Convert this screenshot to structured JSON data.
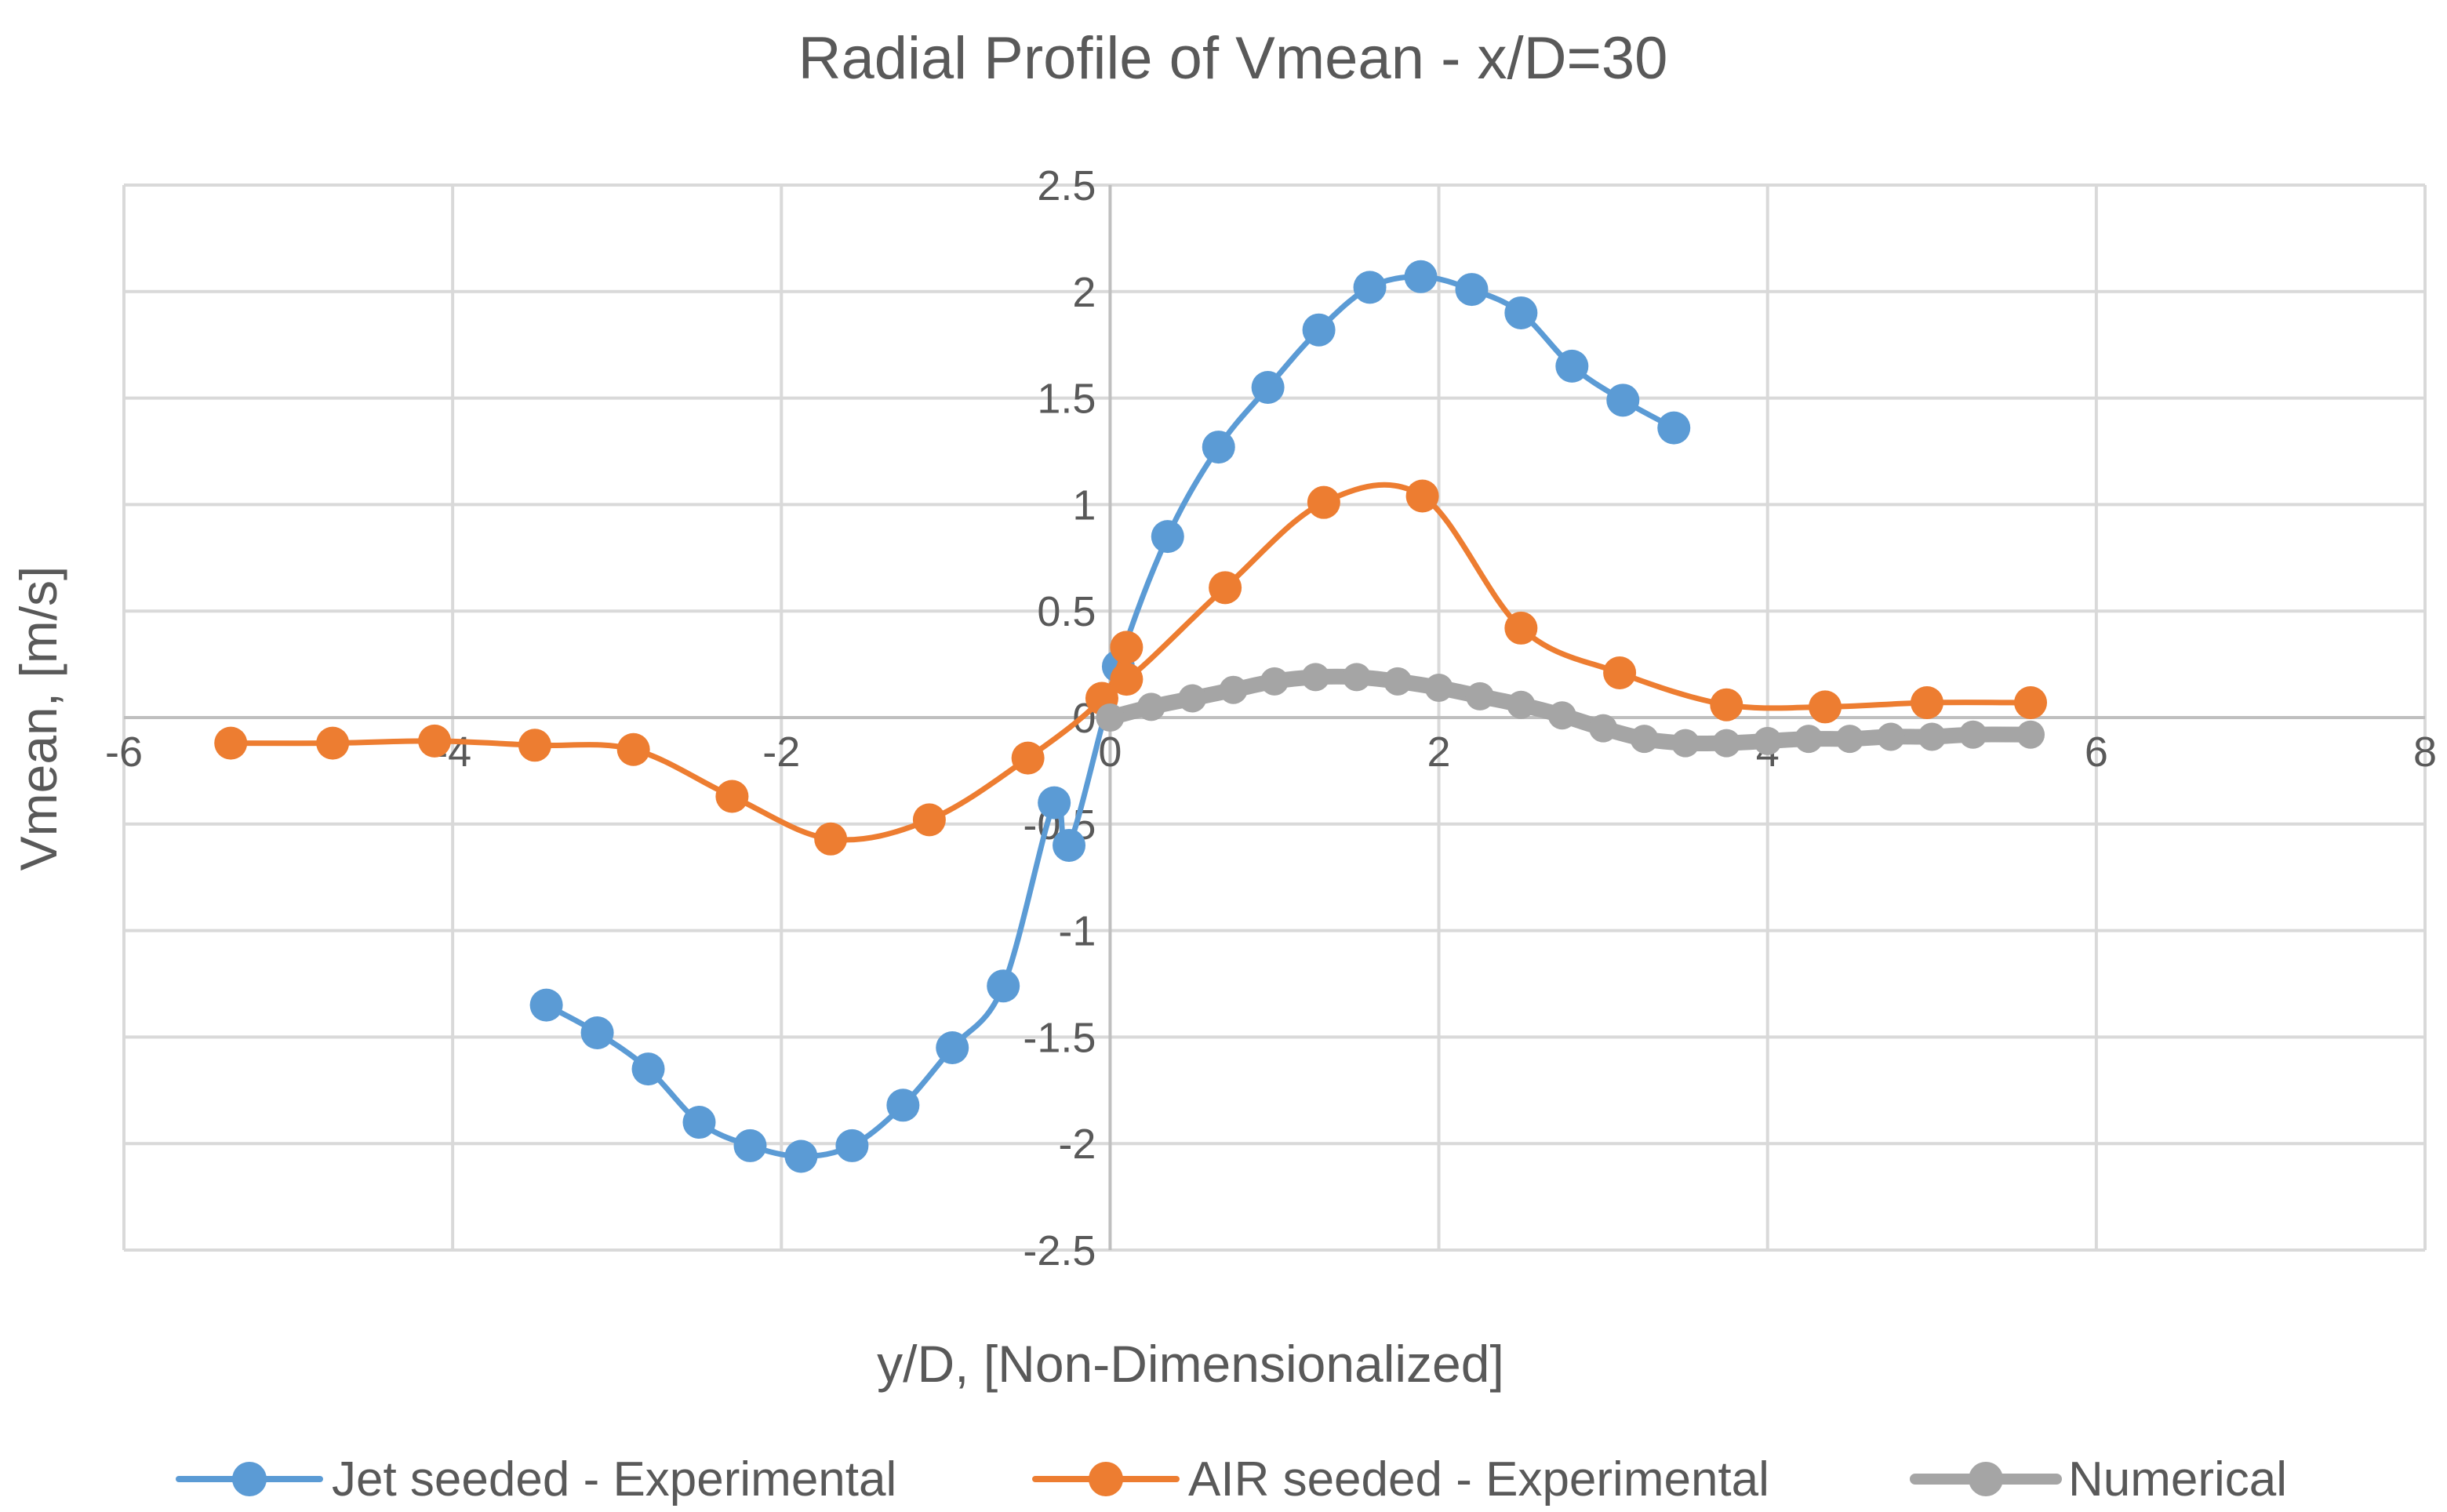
{
  "chart_data": {
    "type": "scatter",
    "title": "Radial Profile of Vmean - x/D=30",
    "xlabel": "y/D, [Non-Dimensionalized]",
    "ylabel": "Vmean, [m/s]",
    "xlim": [
      -6,
      8
    ],
    "ylim": [
      -2.5,
      2.5
    ],
    "x_ticks": [
      -6,
      -4,
      -2,
      0,
      2,
      4,
      6,
      8
    ],
    "y_ticks": [
      -2.5,
      -2,
      -1.5,
      -1,
      -0.5,
      0,
      0.5,
      1,
      1.5,
      2,
      2.5
    ],
    "x_tick_labels": [
      "-6",
      "-4",
      "-2",
      "0",
      "2",
      "4",
      "6",
      "8"
    ],
    "y_tick_labels": [
      "-2.5",
      "-2",
      "-1.5",
      "-1",
      "-0.5",
      "0",
      "0.5",
      "1",
      "1.5",
      "2",
      "2.5"
    ],
    "grid": true,
    "legend_position": "bottom",
    "series": [
      {
        "name": "Jet seeded - Experimental",
        "color": "#5b9bd5",
        "marker": "circle",
        "x": [
          -3.43,
          -3.12,
          -2.81,
          -2.5,
          -2.19,
          -1.88,
          -1.57,
          -1.26,
          -0.96,
          -0.65,
          -0.34,
          -0.25,
          0.05,
          0.35,
          0.66,
          0.96,
          1.27,
          1.58,
          1.89,
          2.2,
          2.5,
          2.81,
          3.12,
          3.43
        ],
        "y": [
          -1.35,
          -1.48,
          -1.65,
          -1.9,
          -2.01,
          -2.06,
          -2.01,
          -1.82,
          -1.55,
          -1.26,
          -0.4,
          -0.6,
          0.24,
          0.85,
          1.27,
          1.55,
          1.82,
          2.02,
          2.07,
          2.01,
          1.9,
          1.65,
          1.49,
          1.36
        ]
      },
      {
        "name": "AIR seeded - Experimental",
        "color": "#ed7d31",
        "marker": "circle",
        "x": [
          -5.35,
          -4.73,
          -4.11,
          -3.5,
          -2.9,
          -2.3,
          -1.7,
          -1.1,
          -0.5,
          -0.05,
          0.1,
          0.1,
          0.7,
          1.3,
          1.9,
          2.5,
          3.1,
          3.75,
          4.35,
          4.97,
          5.6
        ],
        "y": [
          -0.12,
          -0.12,
          -0.11,
          -0.13,
          -0.15,
          -0.37,
          -0.57,
          -0.48,
          -0.19,
          0.09,
          0.33,
          0.18,
          0.61,
          1.01,
          1.04,
          0.42,
          0.21,
          0.06,
          0.05,
          0.07,
          0.07
        ]
      },
      {
        "name": "Numerical",
        "color": "#a5a5a5",
        "marker": "circle",
        "x": [
          0.0,
          0.25,
          0.5,
          0.75,
          1.0,
          1.25,
          1.5,
          1.75,
          2.0,
          2.25,
          2.5,
          2.75,
          3.0,
          3.25,
          3.5,
          3.75,
          4.0,
          4.25,
          4.5,
          4.75,
          5.0,
          5.25,
          5.6
        ],
        "y": [
          0.0,
          0.05,
          0.09,
          0.13,
          0.17,
          0.19,
          0.19,
          0.17,
          0.14,
          0.1,
          0.06,
          0.01,
          -0.05,
          -0.1,
          -0.12,
          -0.12,
          -0.11,
          -0.1,
          -0.1,
          -0.09,
          -0.09,
          -0.08,
          -0.08
        ]
      }
    ]
  }
}
